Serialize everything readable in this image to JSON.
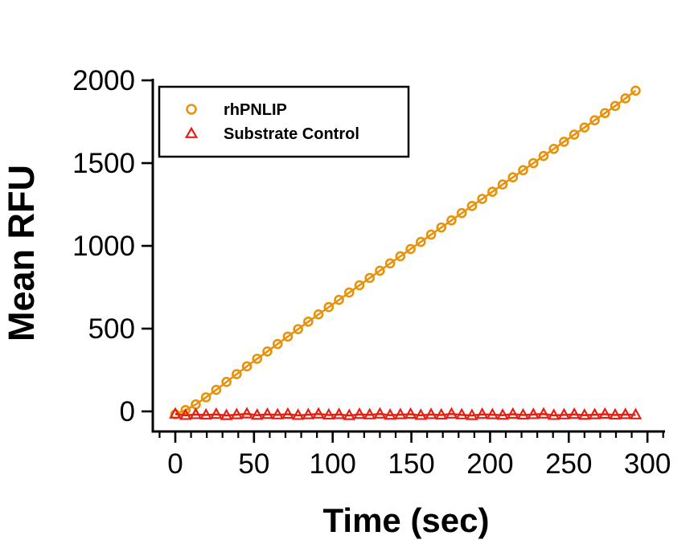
{
  "chart_data": {
    "type": "scatter",
    "title": "",
    "xlabel": "Time (sec)",
    "ylabel": "Mean RFU",
    "xlim": [
      -15,
      312
    ],
    "ylim": [
      -120,
      2010
    ],
    "x_ticks": [
      0,
      50,
      100,
      150,
      200,
      250,
      300
    ],
    "x_minor_tick_step": 10,
    "x_minor_range": [
      -10,
      310
    ],
    "y_ticks": [
      0,
      500,
      1000,
      1500,
      2000
    ],
    "grid": false,
    "legend_position": "top-left-box",
    "background_color": "#ffffff",
    "axis_color": "#000000",
    "x": [
      0,
      6.5,
      13,
      19.5,
      26,
      32.5,
      39,
      45.5,
      52,
      58.5,
      65,
      71.5,
      78,
      84.5,
      91,
      97.5,
      104,
      110.5,
      117,
      123.5,
      130,
      136.5,
      143,
      149.5,
      156,
      162.5,
      169,
      175.5,
      182,
      188.5,
      195,
      201.5,
      208,
      214.5,
      221,
      227.5,
      234,
      240.5,
      247,
      253.5,
      260,
      266.5,
      273,
      279.5,
      286,
      292.5
    ],
    "series": [
      {
        "name": "rhPNLIP",
        "marker": "circle",
        "color": "#E8920C",
        "values": [
          -18,
          8,
          42,
          85,
          130,
          178,
          225,
          272,
          318,
          362,
          407,
          452,
          497,
          542,
          586,
          630,
          674,
          718,
          762,
          806,
          850,
          894,
          937,
          981,
          1024,
          1068,
          1111,
          1154,
          1198,
          1241,
          1284,
          1327,
          1371,
          1414,
          1457,
          1500,
          1543,
          1586,
          1629,
          1672,
          1715,
          1759,
          1802,
          1845,
          1891,
          1938
        ]
      },
      {
        "name": "Substrate Control",
        "marker": "triangle",
        "color": "#E22014",
        "values": [
          -16,
          -24,
          -19,
          -22,
          -18,
          -25,
          -20,
          -15,
          -23,
          -18,
          -21,
          -17,
          -24,
          -20,
          -16,
          -22,
          -19,
          -25,
          -18,
          -21,
          -16,
          -23,
          -20,
          -17,
          -24,
          -19,
          -22,
          -16,
          -21,
          -25,
          -18,
          -20,
          -23,
          -17,
          -22,
          -19,
          -16,
          -24,
          -21,
          -18,
          -23,
          -20,
          -17,
          -22,
          -19,
          -21
        ]
      }
    ]
  }
}
